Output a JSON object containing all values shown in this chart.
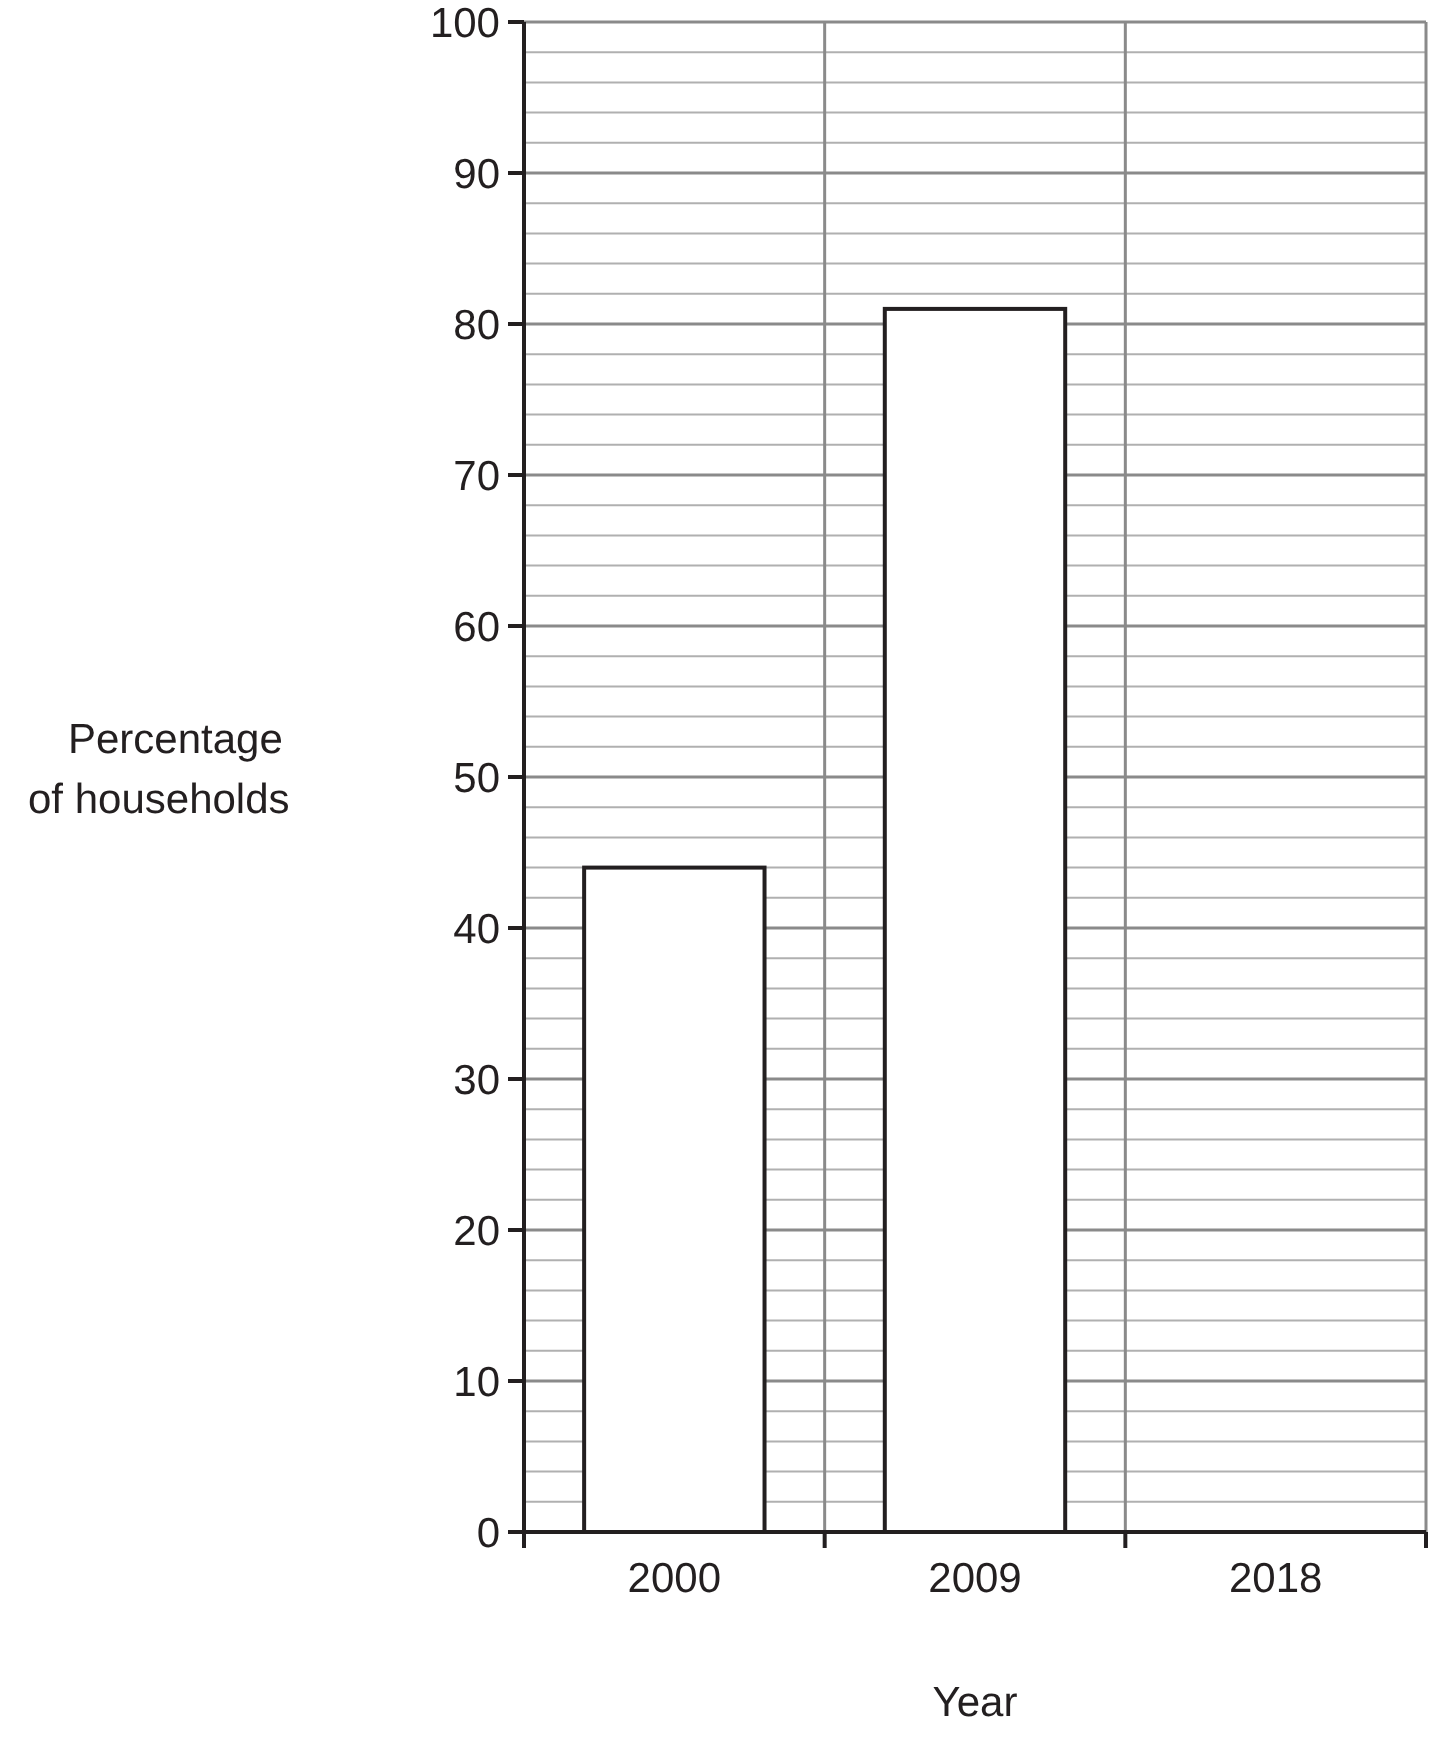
{
  "chart_data": {
    "type": "bar",
    "xlabel": "Year",
    "ylabel": "Percentage\nof households",
    "categories": [
      "2000",
      "2009",
      "2018"
    ],
    "values": [
      44,
      81,
      null
    ],
    "color": "#ffffff",
    "ylim": [
      0,
      100
    ],
    "yticks": [
      0,
      10,
      20,
      30,
      40,
      50,
      60,
      70,
      80,
      90,
      100
    ],
    "grid": true
  }
}
